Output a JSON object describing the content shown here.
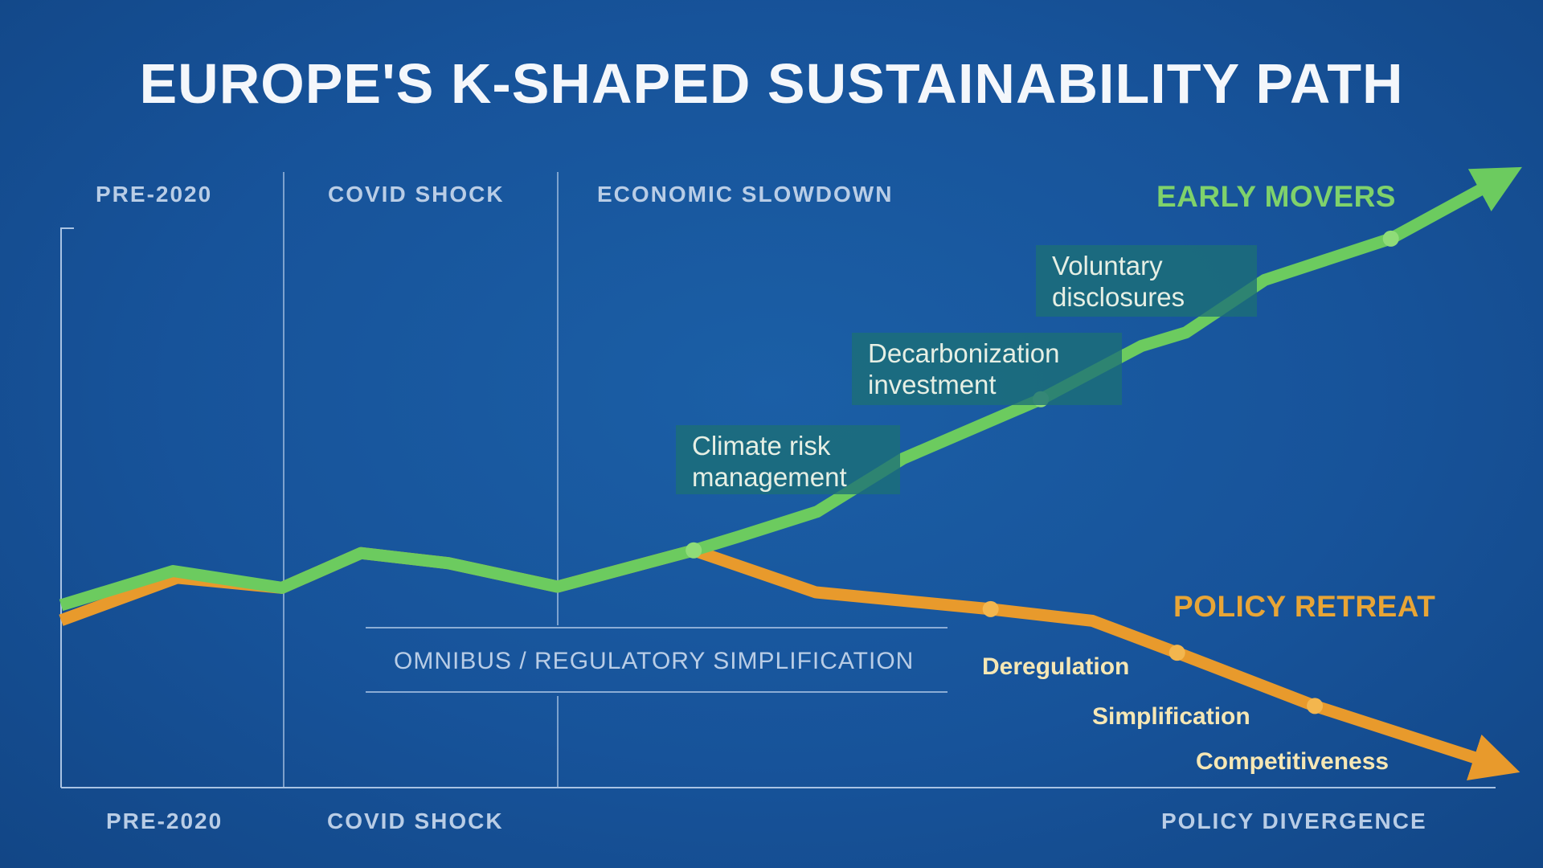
{
  "title": "EUROPE'S K-SHAPED SUSTAINABILITY PATH",
  "top_phases": [
    "PRE-2020",
    "COVID SHOCK",
    "ECONOMIC SLOWDOWN"
  ],
  "bottom_phases": [
    "PRE-2020",
    "COVID SHOCK",
    "POLICY DIVERGENCE"
  ],
  "band_label": "OMNIBUS / REGULATORY SIMPLIFICATION",
  "chart_data": {
    "type": "line",
    "title": "EUROPE'S K-SHAPED SUSTAINABILITY PATH",
    "xlabel": "",
    "ylabel": "",
    "xlim": [
      0,
      100
    ],
    "ylim": [
      0,
      110
    ],
    "grid": false,
    "series": [
      {
        "name": "EARLY MOVERS",
        "color": "#6ccb5f",
        "x": [
          0,
          7.8,
          15.4,
          20.9,
          27.0,
          34.6,
          44.1,
          47.3,
          52.7,
          58.7,
          68.3,
          75.3,
          78.4,
          83.9,
          92.7,
          100
        ],
        "y": [
          32.6,
          38.7,
          35.7,
          41.9,
          40.1,
          35.9,
          42.4,
          44.9,
          49.3,
          58.8,
          69.4,
          78.9,
          81.3,
          90.7,
          98.1,
          108.3
        ],
        "markers_x": [
          44.1,
          68.3,
          92.7
        ],
        "annotations": [
          "Climate risk management",
          "Decarbonization investment",
          "Voluntary disclosures"
        ]
      },
      {
        "name": "POLICY RETREAT",
        "color": "#e89a2c",
        "x": [
          0,
          8.1,
          15.4,
          20.9,
          27.0,
          34.6,
          44.1,
          52.6,
          64.8,
          71.9,
          77.8,
          87.4,
          99.7
        ],
        "y": [
          29.9,
          37.5,
          35.7,
          41.9,
          40.1,
          35.9,
          42.4,
          34.9,
          31.9,
          29.8,
          24.1,
          14.6,
          4.4
        ],
        "markers_x": [
          64.8,
          77.8,
          87.4
        ],
        "annotations": [
          "Deregulation",
          "Simplification",
          "Competitiveness"
        ]
      }
    ]
  }
}
